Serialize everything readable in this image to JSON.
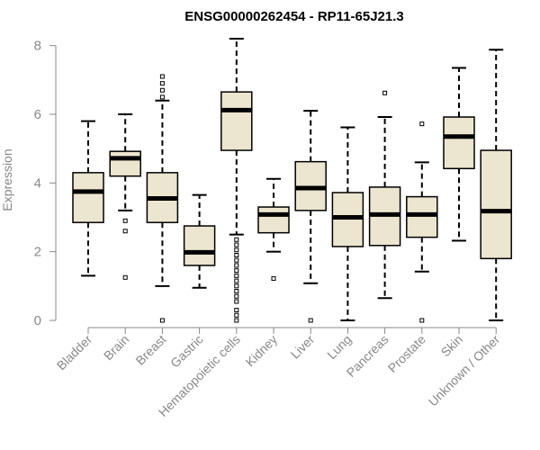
{
  "chart_data": {
    "type": "boxplot",
    "title": "ENSG00000262454 - RP11-65J21.3",
    "xlabel": "",
    "ylabel": "Expression",
    "ylim": [
      0,
      8.2
    ],
    "yticks": [
      0,
      2,
      4,
      6,
      8
    ],
    "box_fill": "#ece5cf",
    "categories": [
      "Bladder",
      "Brain",
      "Breast",
      "Gastric",
      "Hematopoietic cells",
      "Kidney",
      "Liver",
      "Lung",
      "Pancreas",
      "Prostate",
      "Skin",
      "Unknown / Other"
    ],
    "boxes": [
      {
        "min": 1.3,
        "q1": 2.85,
        "median": 3.75,
        "q3": 4.3,
        "max": 5.8,
        "outliers": []
      },
      {
        "min": 3.2,
        "q1": 4.2,
        "median": 4.72,
        "q3": 4.92,
        "max": 6.0,
        "outliers": [
          2.9,
          2.6,
          1.25
        ]
      },
      {
        "min": 1.0,
        "q1": 2.85,
        "median": 3.55,
        "q3": 4.3,
        "max": 6.4,
        "outliers": [
          6.5,
          6.7,
          6.9,
          7.1,
          0.0
        ]
      },
      {
        "min": 0.95,
        "q1": 1.6,
        "median": 1.98,
        "q3": 2.75,
        "max": 3.65,
        "outliers": []
      },
      {
        "min": 2.5,
        "q1": 4.95,
        "median": 6.12,
        "q3": 6.65,
        "max": 8.2,
        "outliers": [
          2.35,
          2.2,
          2.05,
          1.9,
          1.75,
          1.6,
          1.45,
          1.3,
          1.15,
          1.0,
          0.85,
          0.7,
          0.55,
          0.3,
          0.15,
          0.0
        ]
      },
      {
        "min": 2.0,
        "q1": 2.55,
        "median": 3.08,
        "q3": 3.3,
        "max": 4.12,
        "outliers": [
          1.22
        ]
      },
      {
        "min": 1.08,
        "q1": 3.2,
        "median": 3.85,
        "q3": 4.62,
        "max": 6.1,
        "outliers": [
          0.0
        ]
      },
      {
        "min": 0.0,
        "q1": 2.15,
        "median": 3.0,
        "q3": 3.72,
        "max": 5.62,
        "outliers": []
      },
      {
        "min": 0.65,
        "q1": 2.18,
        "median": 3.08,
        "q3": 3.88,
        "max": 5.92,
        "outliers": [
          6.62
        ]
      },
      {
        "min": 1.42,
        "q1": 2.42,
        "median": 3.08,
        "q3": 3.6,
        "max": 4.6,
        "outliers": [
          5.72,
          0.0
        ]
      },
      {
        "min": 2.32,
        "q1": 4.42,
        "median": 5.35,
        "q3": 5.92,
        "max": 7.35,
        "outliers": []
      },
      {
        "min": 0.0,
        "q1": 1.8,
        "median": 3.18,
        "q3": 4.95,
        "max": 7.88,
        "outliers": []
      }
    ]
  }
}
